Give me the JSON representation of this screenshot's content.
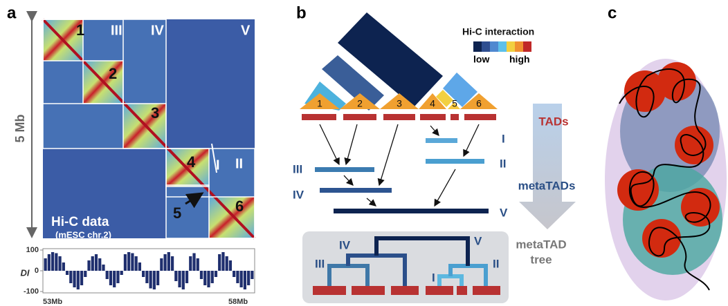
{
  "panel_a": {
    "label": "a",
    "axis_label": "5 Mb",
    "tads": [
      "1",
      "2",
      "3",
      "4",
      "5",
      "6"
    ],
    "metatads": [
      "I",
      "II",
      "III",
      "IV",
      "V"
    ],
    "caption": "Hi-C data",
    "subcaption": "(mESC chr.2)",
    "di": {
      "ylabel": "DI",
      "ylim": [
        -100,
        100
      ],
      "yticks": [
        -100,
        0,
        100
      ],
      "xlabels": [
        "53Mb",
        "58Mb"
      ],
      "color": "#1f2f6e",
      "values": [
        60,
        80,
        90,
        85,
        70,
        40,
        -20,
        -60,
        -80,
        -90,
        -70,
        -30,
        50,
        70,
        80,
        60,
        30,
        -40,
        -70,
        -80,
        -60,
        -20,
        80,
        90,
        85,
        70,
        40,
        -30,
        -60,
        -85,
        -90,
        -70,
        60,
        80,
        90,
        70,
        -50,
        -80,
        -90,
        -60,
        70,
        85,
        60,
        -40,
        -70,
        -80,
        -60,
        -30,
        80,
        90,
        70,
        50,
        -30,
        -60,
        -80,
        -90,
        -70,
        -40
      ]
    }
  },
  "panel_b": {
    "label": "b",
    "legend": {
      "title": "Hi-C interaction",
      "low": "low",
      "high": "high"
    },
    "tads": [
      "1",
      "2",
      "3",
      "4",
      "5",
      "6"
    ],
    "metatads": [
      "I",
      "II",
      "III",
      "IV",
      "V"
    ],
    "stages": {
      "tads": "TADs",
      "metatads": "metaTADs",
      "tree": [
        "metaTAD",
        "tree"
      ]
    }
  },
  "panel_c": {
    "label": "c"
  }
}
